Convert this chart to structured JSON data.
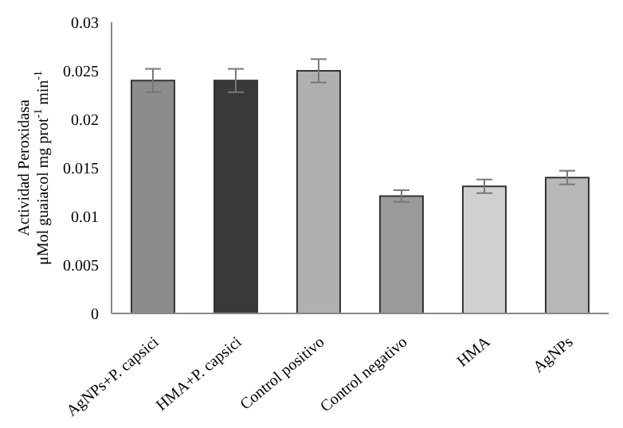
{
  "chart_data": {
    "type": "bar",
    "ylabel": "Actividad Peroxidasa\nμMol guaiacol  mg prot$^{-1}$  min$^{-1}$",
    "categories": [
      "AgNPs+P. capsici",
      "HMA+P. capsici",
      "Control positivo",
      "Control negativo",
      "HMA",
      "AgNPs"
    ],
    "values": [
      0.024,
      0.024,
      0.025,
      0.0121,
      0.0131,
      0.014
    ],
    "errors": [
      0.0012,
      0.0012,
      0.0012,
      0.0006,
      0.0007,
      0.0007
    ],
    "colors": [
      "#8c8c8c",
      "#3a3a3a",
      "#b0b0b0",
      "#9a9a9a",
      "#d0d0d0",
      "#b8b8b8"
    ],
    "ylim": [
      0,
      0.03
    ],
    "yticks": [
      0,
      0.005,
      0.01,
      0.015,
      0.02,
      0.025,
      0.03
    ],
    "grid": false,
    "legend": false
  }
}
